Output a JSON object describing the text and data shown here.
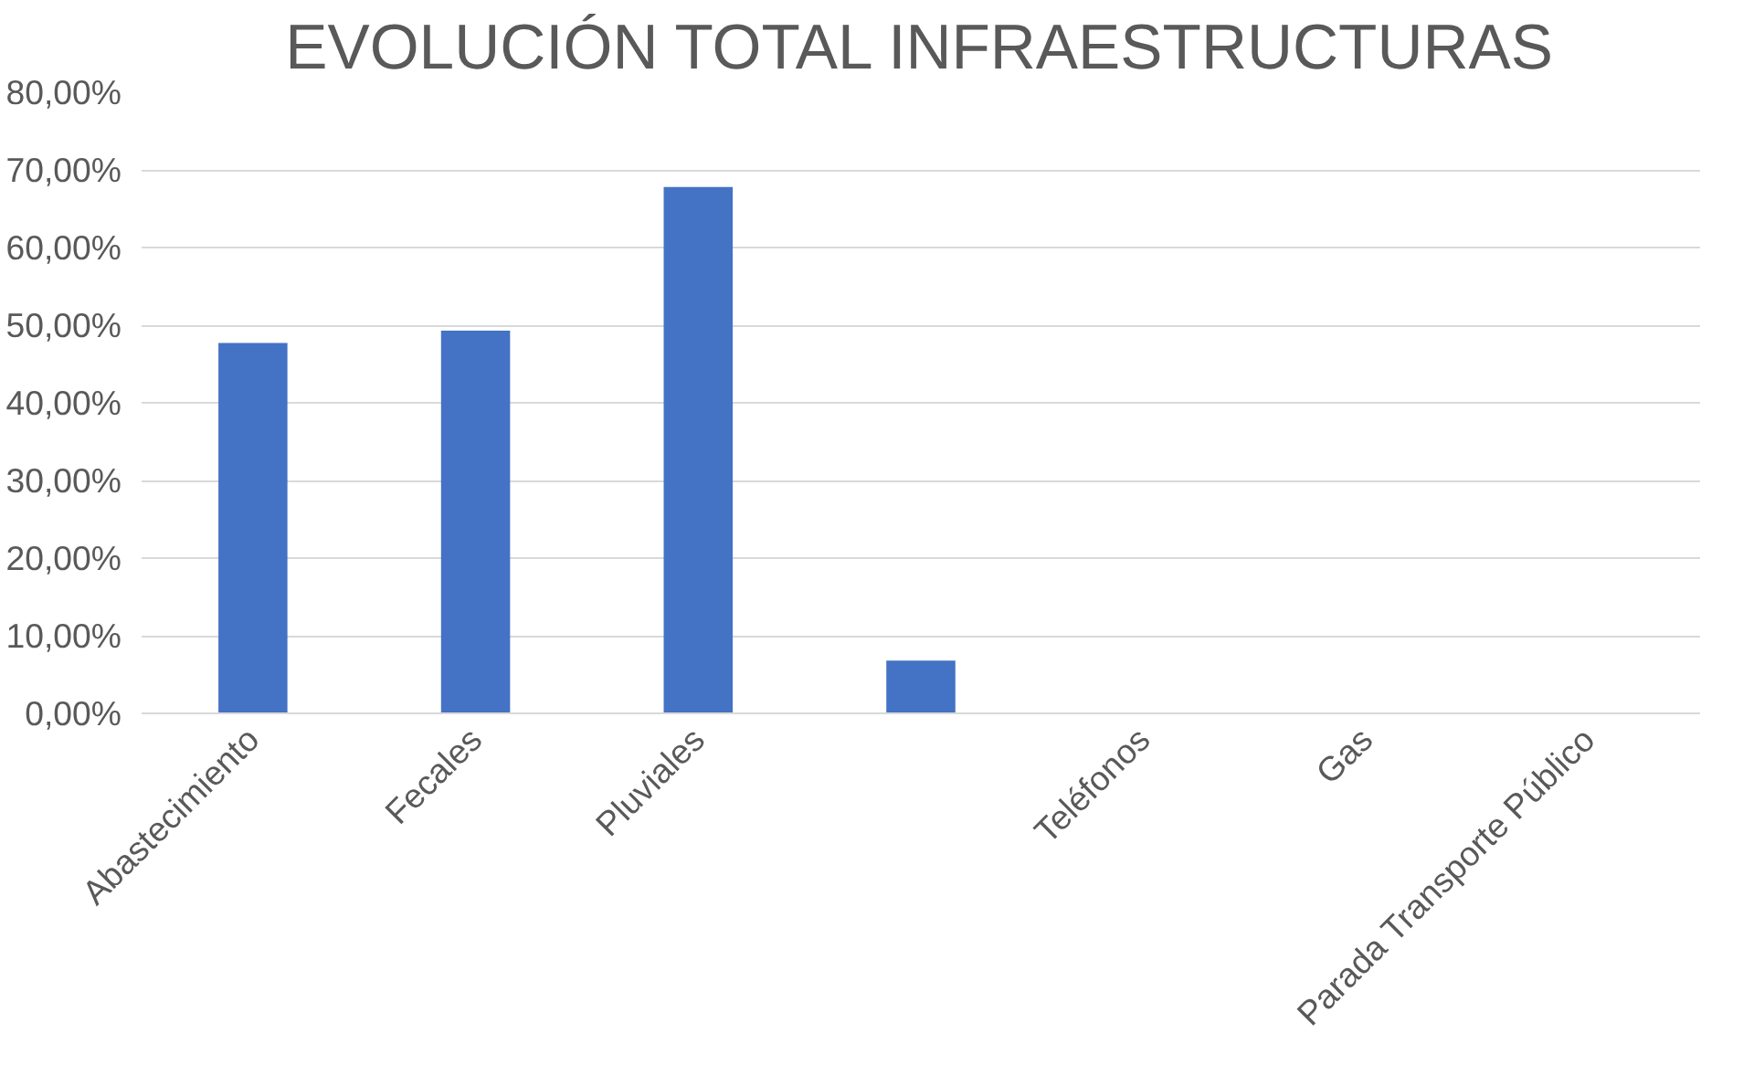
{
  "chart_data": {
    "type": "bar",
    "title": "EVOLUCIÓN TOTAL INFRAESTRUCTURAS",
    "categories": [
      "Abastecimiento",
      "Fecales",
      "Pluviales",
      null,
      "Teléfonos",
      "Gas",
      "Parada Transporte Público"
    ],
    "values": [
      47.7,
      49.3,
      67.8,
      6.8,
      0,
      0,
      0
    ],
    "color": "#4472c4",
    "ylim": [
      0,
      80
    ],
    "yticks": [
      {
        "value": 0,
        "label": "0,00%"
      },
      {
        "value": 10,
        "label": "10,00%"
      },
      {
        "value": 20,
        "label": "20,00%"
      },
      {
        "value": 30,
        "label": "30,00%"
      },
      {
        "value": 40,
        "label": "40,00%"
      },
      {
        "value": 50,
        "label": "50,00%"
      },
      {
        "value": 60,
        "label": "60,00%"
      },
      {
        "value": 70,
        "label": "70,00%"
      },
      {
        "value": 80,
        "label": "80,00%"
      }
    ],
    "grid": "y"
  }
}
